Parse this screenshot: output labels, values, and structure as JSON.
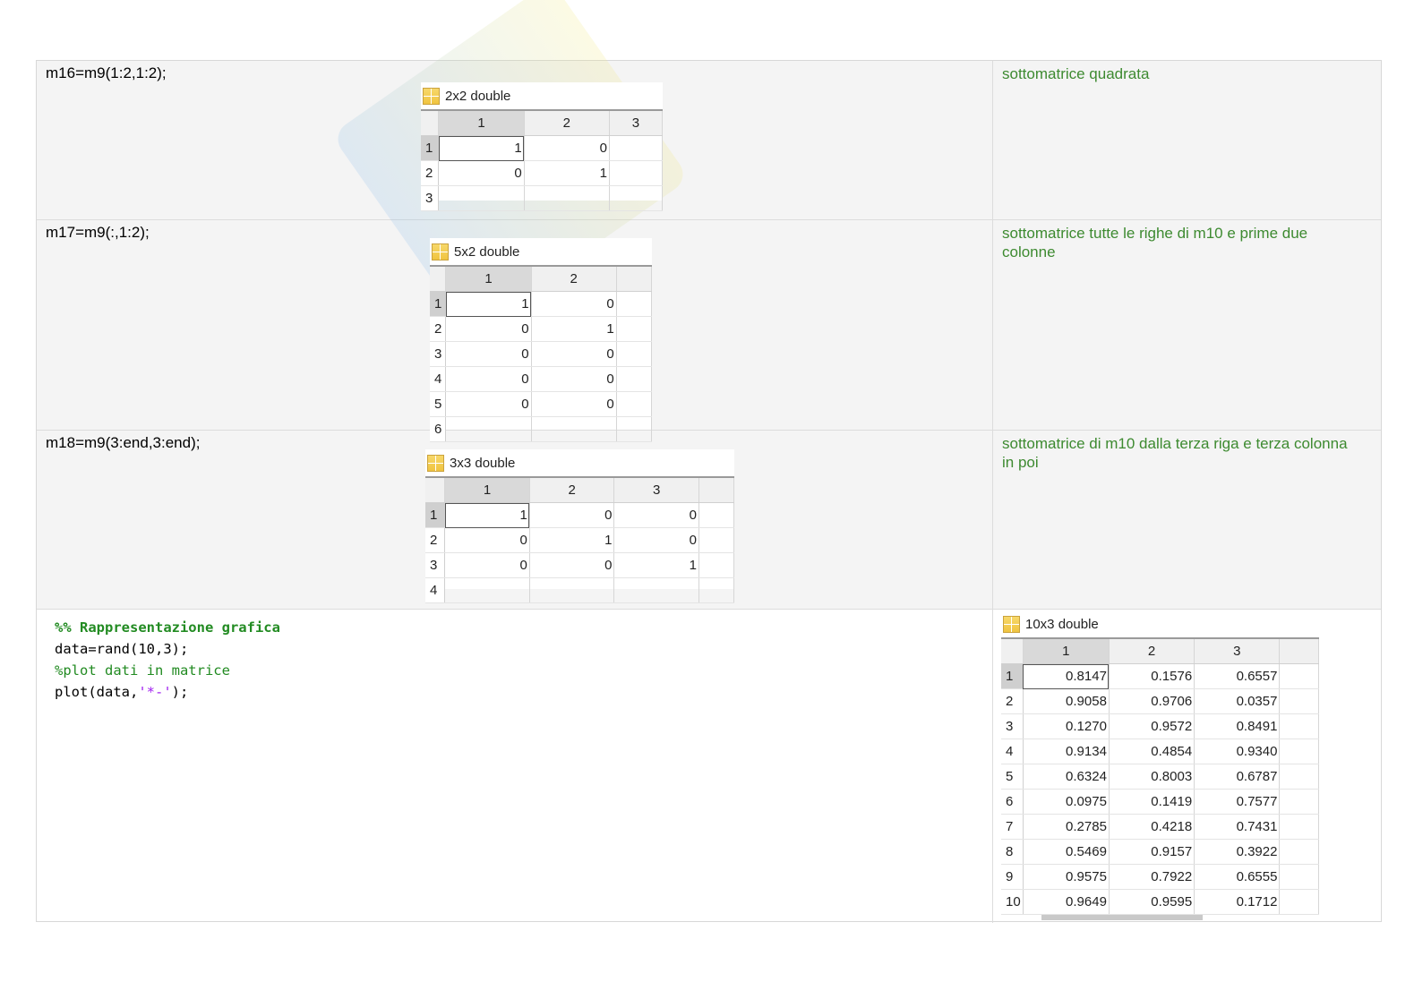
{
  "rows": [
    {
      "code": "m16=m9(1:2,1:2);",
      "note": "sottomatrice quadrata"
    },
    {
      "code": "m17=m9(:,1:2);",
      "note": "sottomatrice tutte le righe di m10 e prime due colonne"
    },
    {
      "code": "m18=m9(3:end,3:end);",
      "note": "sottomatrice di m10 dalla terza riga e terza colonna in poi"
    }
  ],
  "script": {
    "line1_comment": "%% Rappresentazione grafica",
    "line2": "data=rand(10,3);",
    "line3_comment": "%plot dati in matrice",
    "line4_pre": "plot(data,",
    "line4_str": "'*-'",
    "line4_post": ");"
  },
  "matrices": [
    {
      "title": "2x2 double",
      "col_headers": [
        "1",
        "2",
        "3"
      ],
      "rows": [
        [
          "1",
          "1",
          "0",
          ""
        ],
        [
          "2",
          "0",
          "1",
          ""
        ],
        [
          "3",
          "",
          "",
          ""
        ]
      ]
    },
    {
      "title": "5x2 double",
      "col_headers": [
        "1",
        "2",
        ""
      ],
      "rows": [
        [
          "1",
          "1",
          "0",
          ""
        ],
        [
          "2",
          "0",
          "1",
          ""
        ],
        [
          "3",
          "0",
          "0",
          ""
        ],
        [
          "4",
          "0",
          "0",
          ""
        ],
        [
          "5",
          "0",
          "0",
          ""
        ],
        [
          "6",
          "",
          "",
          ""
        ]
      ]
    },
    {
      "title": "3x3 double",
      "col_headers": [
        "1",
        "2",
        "3",
        ""
      ],
      "rows": [
        [
          "1",
          "1",
          "0",
          "0",
          ""
        ],
        [
          "2",
          "0",
          "1",
          "0",
          ""
        ],
        [
          "3",
          "0",
          "0",
          "1",
          ""
        ],
        [
          "4",
          "",
          "",
          "",
          ""
        ]
      ]
    },
    {
      "title": "10x3 double",
      "col_headers": [
        "1",
        "2",
        "3",
        ""
      ],
      "rows": [
        [
          "1",
          "0.8147",
          "0.1576",
          "0.6557",
          ""
        ],
        [
          "2",
          "0.9058",
          "0.9706",
          "0.0357",
          ""
        ],
        [
          "3",
          "0.1270",
          "0.9572",
          "0.8491",
          ""
        ],
        [
          "4",
          "0.9134",
          "0.4854",
          "0.9340",
          ""
        ],
        [
          "5",
          "0.6324",
          "0.8003",
          "0.6787",
          ""
        ],
        [
          "6",
          "0.0975",
          "0.1419",
          "0.7577",
          ""
        ],
        [
          "7",
          "0.2785",
          "0.4218",
          "0.7431",
          ""
        ],
        [
          "8",
          "0.5469",
          "0.9157",
          "0.3922",
          ""
        ],
        [
          "9",
          "0.9575",
          "0.7922",
          "0.6555",
          ""
        ],
        [
          "10",
          "0.9649",
          "0.9595",
          "0.1712",
          ""
        ]
      ]
    }
  ]
}
